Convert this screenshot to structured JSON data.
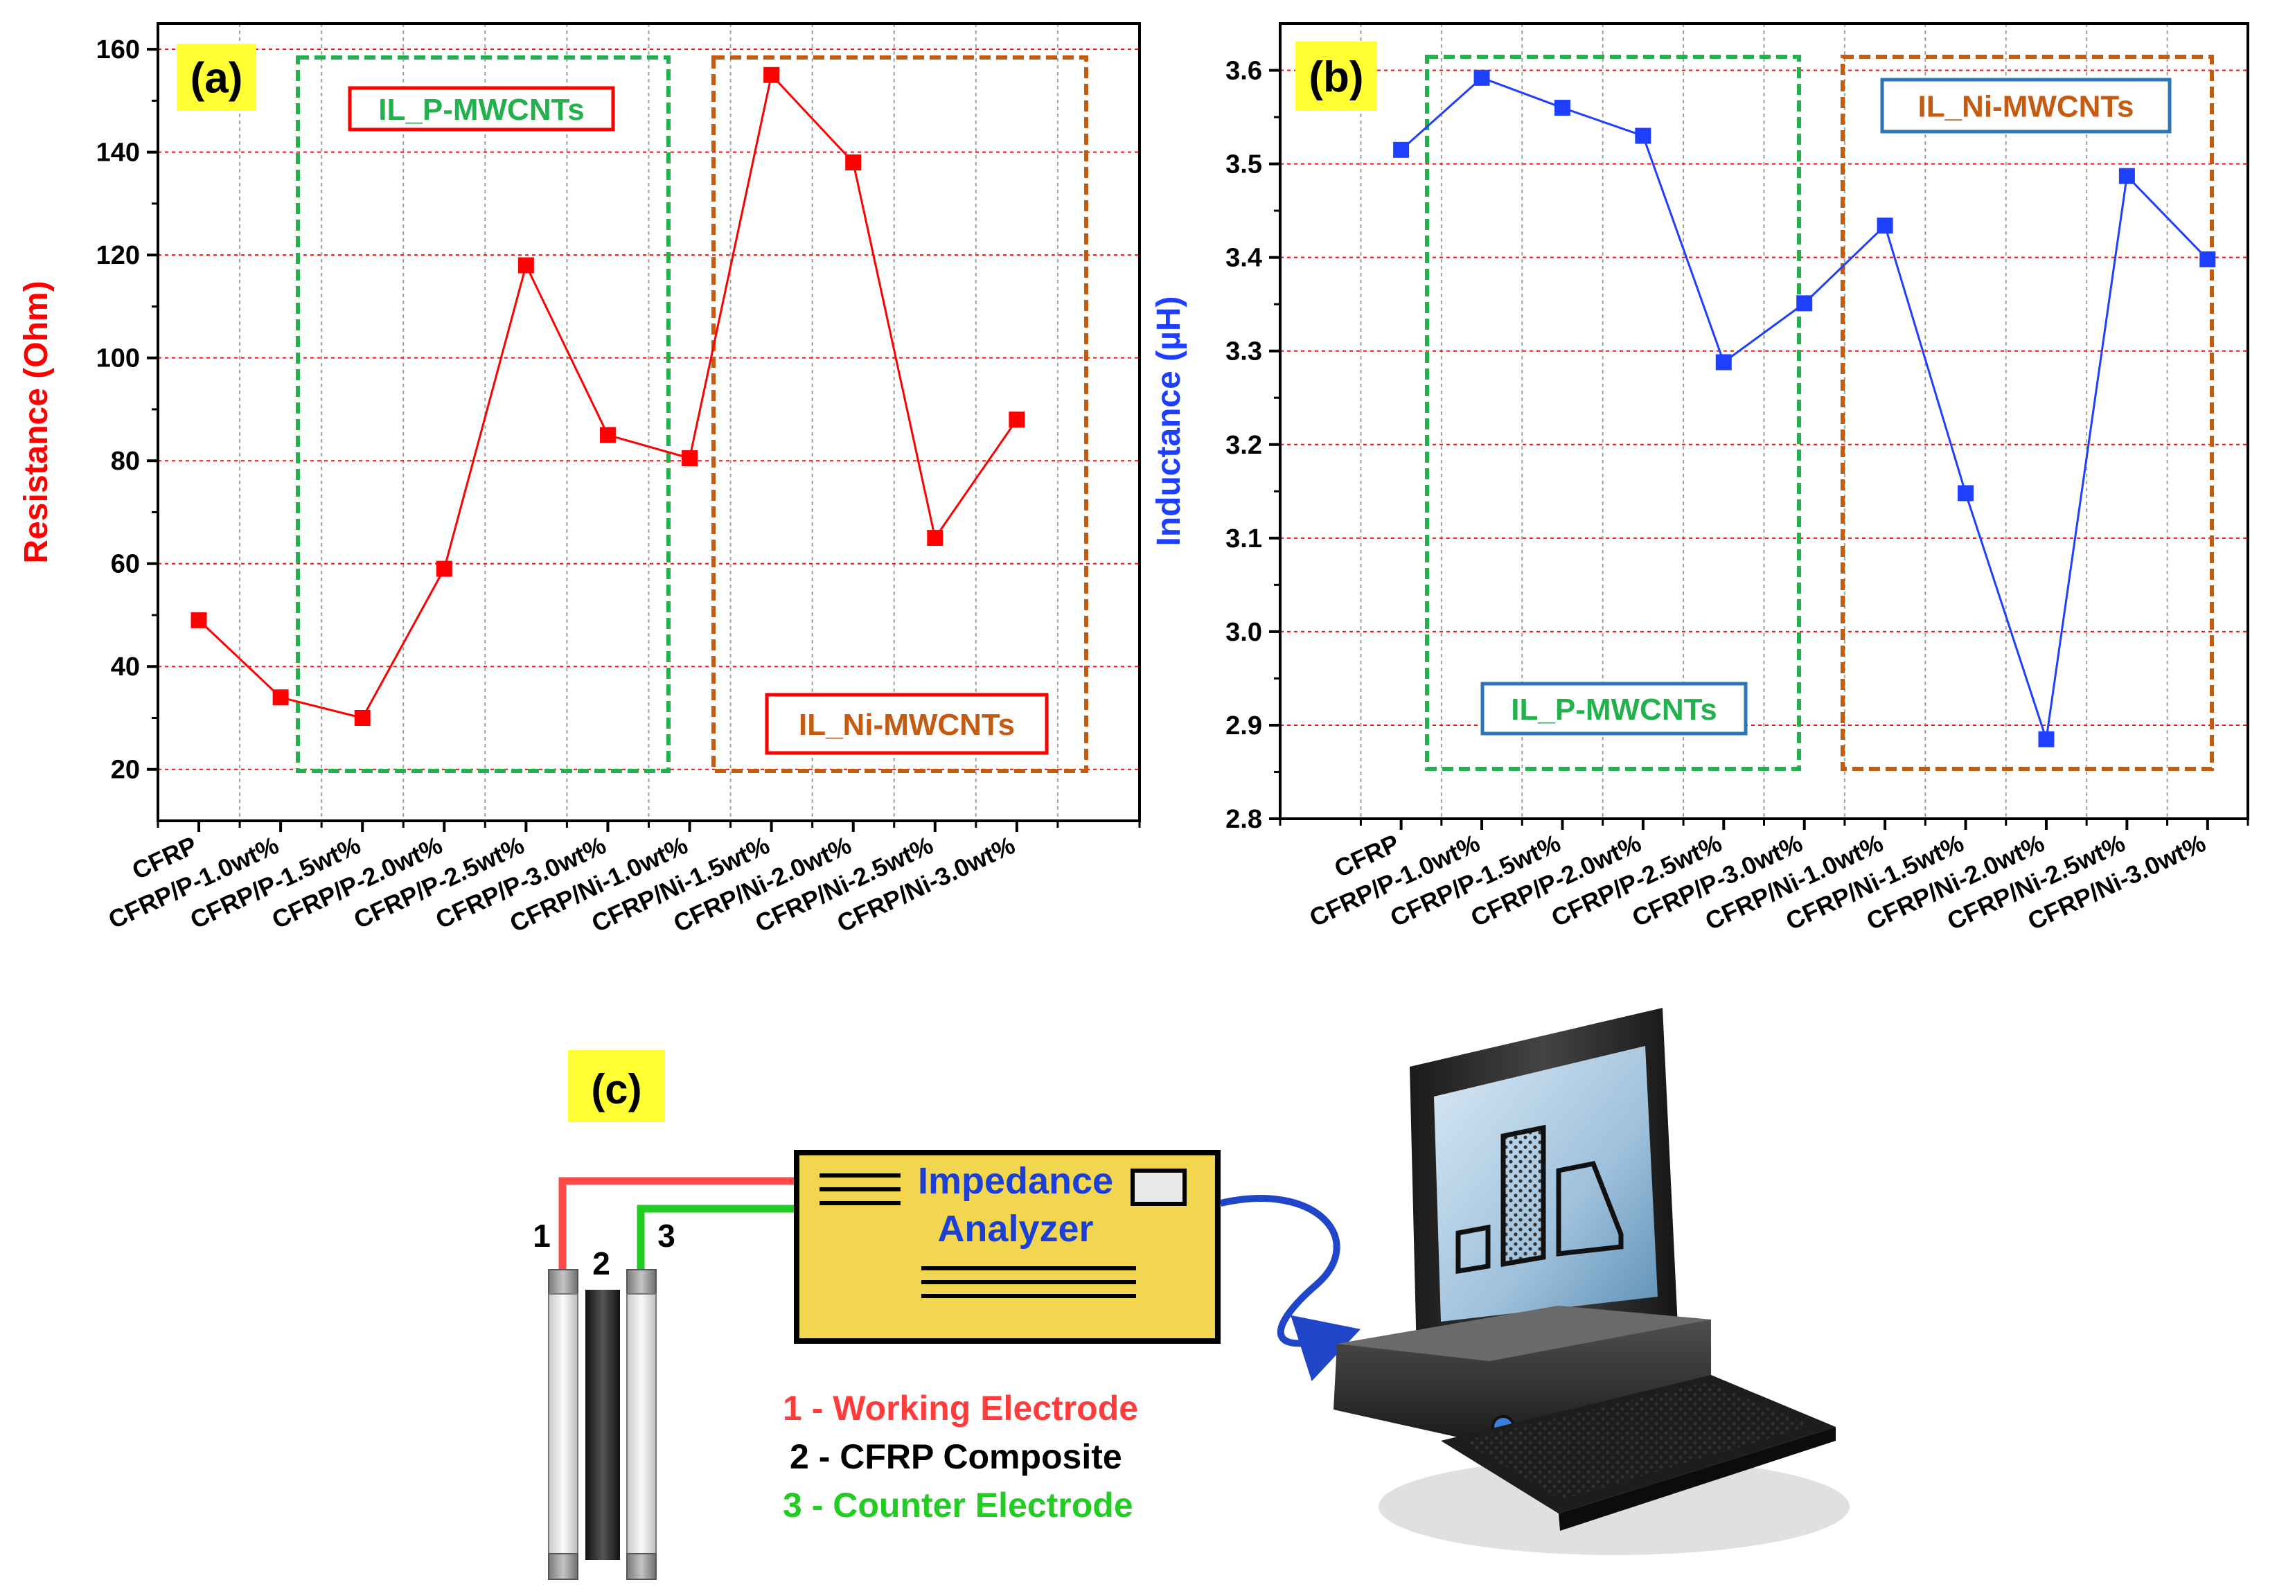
{
  "chart_data": [
    {
      "panel_label": "(a)",
      "type": "line",
      "ylabel": "Resistance (Ohm)",
      "ylim": [
        10,
        165
      ],
      "yticks": [
        20,
        40,
        60,
        80,
        100,
        120,
        140,
        160
      ],
      "grid": true,
      "color": "#ff0000",
      "categories": [
        "CFRP",
        "CFRP/P-1.0wt%",
        "CFRP/P-1.5wt%",
        "CFRP/P-2.0wt%",
        "CFRP/P-2.5wt%",
        "CFRP/P-3.0wt%",
        "CFRP/Ni-1.0wt%",
        "CFRP/Ni-1.5wt%",
        "CFRP/Ni-2.0wt%",
        "CFRP/Ni-2.5wt%",
        "CFRP/Ni-3.0wt%"
      ],
      "values": [
        49,
        34,
        30,
        59,
        118,
        85,
        80.5,
        155,
        138,
        65,
        88
      ],
      "groups": [
        {
          "label": "IL_P-MWCNTs",
          "box_color": "#22b14c",
          "label_color": "#22b14c",
          "label_border": "#ff0000"
        },
        {
          "label": "IL_Ni-MWCNTs",
          "box_color": "#c55a11",
          "label_color": "#c55a11",
          "label_border": "#ff0000"
        }
      ]
    },
    {
      "panel_label": "(b)",
      "type": "line",
      "ylabel": "Inductance (µH)",
      "ylim": [
        2.8,
        3.65
      ],
      "yticks": [
        "2.8",
        "2.9",
        "3.0",
        "3.1",
        "3.2",
        "3.3",
        "3.4",
        "3.5",
        "3.6"
      ],
      "grid": true,
      "color": "#1f3fff",
      "categories": [
        "CFRP",
        "CFRP/P-1.0wt%",
        "CFRP/P-1.5wt%",
        "CFRP/P-2.0wt%",
        "CFRP/P-2.5wt%",
        "CFRP/P-3.0wt%",
        "CFRP/Ni-1.0wt%",
        "CFRP/Ni-1.5wt%",
        "CFRP/Ni-2.0wt%",
        "CFRP/Ni-2.5wt%",
        "CFRP/Ni-3.0wt%"
      ],
      "values": [
        3.515,
        3.592,
        3.56,
        3.53,
        3.288,
        3.351,
        3.434,
        3.148,
        2.885,
        3.487,
        3.398
      ],
      "groups": [
        {
          "label": "IL_P-MWCNTs",
          "box_color": "#22b14c",
          "label_color": "#22b14c",
          "label_border": "#2e75b6"
        },
        {
          "label": "IL_Ni-MWCNTs",
          "box_color": "#c55a11",
          "label_color": "#c55a11",
          "label_border": "#2e75b6"
        }
      ]
    }
  ],
  "panel_c": {
    "label": "(c)",
    "analyzer_line1": "Impedance",
    "analyzer_line2": "Analyzer",
    "electrode_numbers": [
      "1",
      "2",
      "3"
    ],
    "legend": [
      {
        "text": "1 - Working Electrode",
        "color": "#ff3b3b"
      },
      {
        "text": "2 - CFRP Composite",
        "color": "#000000"
      },
      {
        "text": "3 - Counter Electrode",
        "color": "#22cc22"
      }
    ],
    "icons": [
      "electrode-cell-icon",
      "impedance-analyzer-icon",
      "desktop-computer-icon"
    ]
  }
}
